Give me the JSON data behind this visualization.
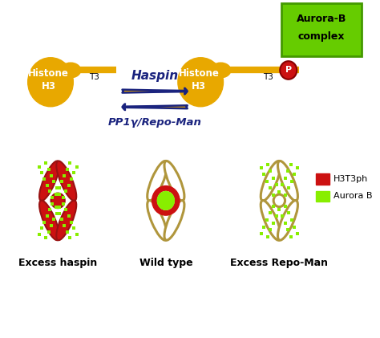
{
  "fig_width": 4.74,
  "fig_height": 4.21,
  "dpi": 100,
  "bg_color": "#ffffff",
  "histone_color": "#E8A800",
  "aurora_box_color": "#66CC00",
  "aurora_box_edge": "#449900",
  "phospho_color": "#CC1111",
  "arrow_fill": "#E8A800",
  "arrow_edge": "#1a237e",
  "label_color": "#1a237e",
  "chrom_red": "#CC1111",
  "chrom_outline": "#B0963C",
  "dot_green": "#88EE00",
  "legend_red": "#CC1111",
  "legend_green": "#88EE00",
  "haspin_text": "Haspin",
  "pp1_text": "PP1γ/Repo-Man",
  "aurora_line1": "Aurora-B",
  "aurora_line2": "complex",
  "phospho_label": "P",
  "t3_left": "T3",
  "t3_right": "T3",
  "histone_label": "Histone\nH3",
  "label_excess_haspin": "Excess haspin",
  "label_wild": "Wild type",
  "label_excess_repo": "Excess Repo-Man",
  "legend_h3t3ph": "H3T3ph",
  "legend_aurora": "Aurora B"
}
